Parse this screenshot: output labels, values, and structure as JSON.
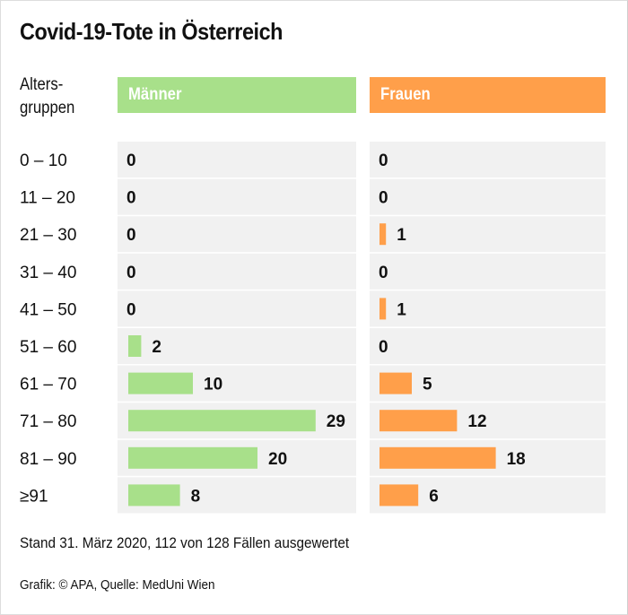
{
  "colors": {
    "men": "#a8e08a",
    "women": "#ff9f4a",
    "row_background": "#f1f1f1"
  },
  "chart_data": {
    "type": "bar",
    "title": "Covid-19-Tote in Österreich",
    "category_header": [
      "Alters-",
      "gruppen"
    ],
    "categories": [
      "0 – 10",
      "11 – 20",
      "21 – 30",
      "31 – 40",
      "41 – 50",
      "51 – 60",
      "61 – 70",
      "71 – 80",
      "81 – 90",
      "≥91"
    ],
    "series": [
      {
        "name": "Männer",
        "values": [
          0,
          0,
          0,
          0,
          0,
          2,
          10,
          29,
          20,
          8
        ]
      },
      {
        "name": "Frauen",
        "values": [
          0,
          0,
          1,
          0,
          1,
          0,
          5,
          12,
          18,
          6
        ]
      }
    ],
    "note": "Stand 31. März 2020, 112 von 128 Fällen ausgewertet",
    "credit": "Grafik: © APA, Quelle: MedUni Wien"
  }
}
